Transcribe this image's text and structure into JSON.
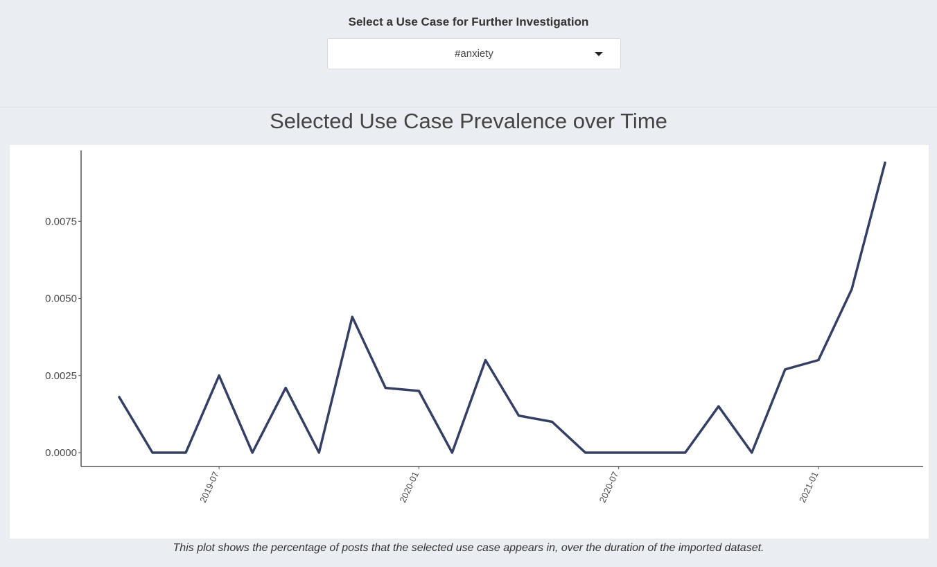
{
  "selector": {
    "label": "Select a Use Case for Further Investigation",
    "value": "#anxiety"
  },
  "caption": "This plot shows the percentage of posts that the selected use case appears in, over the duration of the imported dataset.",
  "colors": {
    "line": "#353f63",
    "axis": "#555555",
    "page_bg": "#eaedf2"
  },
  "chart_data": {
    "type": "line",
    "title": "Selected Use Case Prevalence over Time",
    "xlabel": "",
    "ylabel": "",
    "x": [
      "2019-04",
      "2019-05",
      "2019-06",
      "2019-07",
      "2019-08",
      "2019-09",
      "2019-10",
      "2019-11",
      "2019-12",
      "2020-01",
      "2020-02",
      "2020-03",
      "2020-04",
      "2020-05",
      "2020-06",
      "2020-07",
      "2020-08",
      "2020-09",
      "2020-10",
      "2020-11",
      "2020-12",
      "2021-01",
      "2021-02",
      "2021-03"
    ],
    "series": [
      {
        "values": [
          0.0018,
          0.0,
          0.0,
          0.0025,
          0.0,
          0.0021,
          0.0,
          0.0044,
          0.0021,
          0.002,
          0.0,
          0.003,
          0.0012,
          0.001,
          0.0,
          0.0,
          0.0,
          0.0,
          0.0015,
          0.0,
          0.0027,
          0.003,
          0.0053,
          0.0094
        ]
      }
    ],
    "y_ticks": [
      "0.0000",
      "0.0025",
      "0.0050",
      "0.0075"
    ],
    "y_tick_values": [
      0,
      0.0025,
      0.005,
      0.0075
    ],
    "x_ticks": [
      "2019-07",
      "2020-01",
      "2020-07",
      "2021-01"
    ],
    "ylim": [
      -0.00045,
      0.0098
    ],
    "grid": false,
    "legend": "none"
  }
}
